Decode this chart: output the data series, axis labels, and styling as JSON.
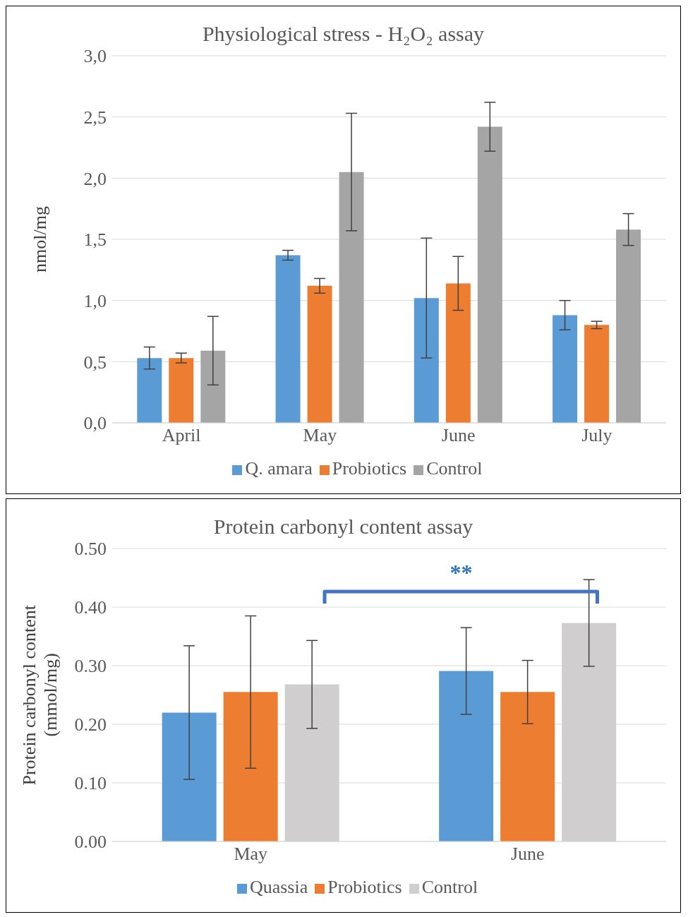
{
  "chart_data": [
    {
      "type": "bar",
      "title": "Physiological stress - H₂O₂ assay",
      "ylabel": "nmol/mg",
      "categories": [
        "April",
        "May",
        "June",
        "July"
      ],
      "series": [
        {
          "name": "Q. amara",
          "color": "#5b9bd5",
          "values": [
            0.53,
            1.37,
            1.02,
            0.88
          ],
          "errors": [
            0.09,
            0.04,
            0.49,
            0.12
          ]
        },
        {
          "name": "Probiotics",
          "color": "#ed7d31",
          "values": [
            0.53,
            1.12,
            1.14,
            0.8
          ],
          "errors": [
            0.04,
            0.06,
            0.22,
            0.03
          ]
        },
        {
          "name": "Control",
          "color": "#a5a5a5",
          "values": [
            0.59,
            2.05,
            2.42,
            1.58
          ],
          "errors": [
            0.28,
            0.48,
            0.2,
            0.13
          ]
        }
      ],
      "ylim": [
        0,
        3
      ],
      "yticks": [
        {
          "value": 0,
          "label": "0,0"
        },
        {
          "value": 0.5,
          "label": "0,5"
        },
        {
          "value": 1,
          "label": "1,0"
        },
        {
          "value": 1.5,
          "label": "1,5"
        },
        {
          "value": 2,
          "label": "2,0"
        },
        {
          "value": 2.5,
          "label": "2,5"
        },
        {
          "value": 3,
          "label": "3,0"
        }
      ],
      "grid": "y",
      "legend": "bottom"
    },
    {
      "type": "bar",
      "title": "Protein carbonyl content assay",
      "ylabel": "Protein carbonyl content (mmol/mg)",
      "categories": [
        "May",
        "June"
      ],
      "series": [
        {
          "name": "Quassia",
          "color": "#5b9bd5",
          "values": [
            0.22,
            0.291
          ],
          "errors": [
            0.114,
            0.074
          ]
        },
        {
          "name": "Probiotics",
          "color": "#ed7d31",
          "values": [
            0.255,
            0.255
          ],
          "errors": [
            0.13,
            0.054
          ]
        },
        {
          "name": "Control",
          "color": "#d0cece",
          "values": [
            0.268,
            0.373
          ],
          "errors": [
            0.075,
            0.074
          ]
        }
      ],
      "ylim": [
        0,
        0.5
      ],
      "yticks": [
        {
          "value": 0,
          "label": "0.00"
        },
        {
          "value": 0.1,
          "label": "0.10"
        },
        {
          "value": 0.2,
          "label": "0.20"
        },
        {
          "value": 0.3,
          "label": "0.30"
        },
        {
          "value": 0.4,
          "label": "0.40"
        },
        {
          "value": 0.5,
          "label": "0.50"
        }
      ],
      "grid": "y",
      "legend": "bottom",
      "annotations": [
        "**"
      ]
    }
  ]
}
